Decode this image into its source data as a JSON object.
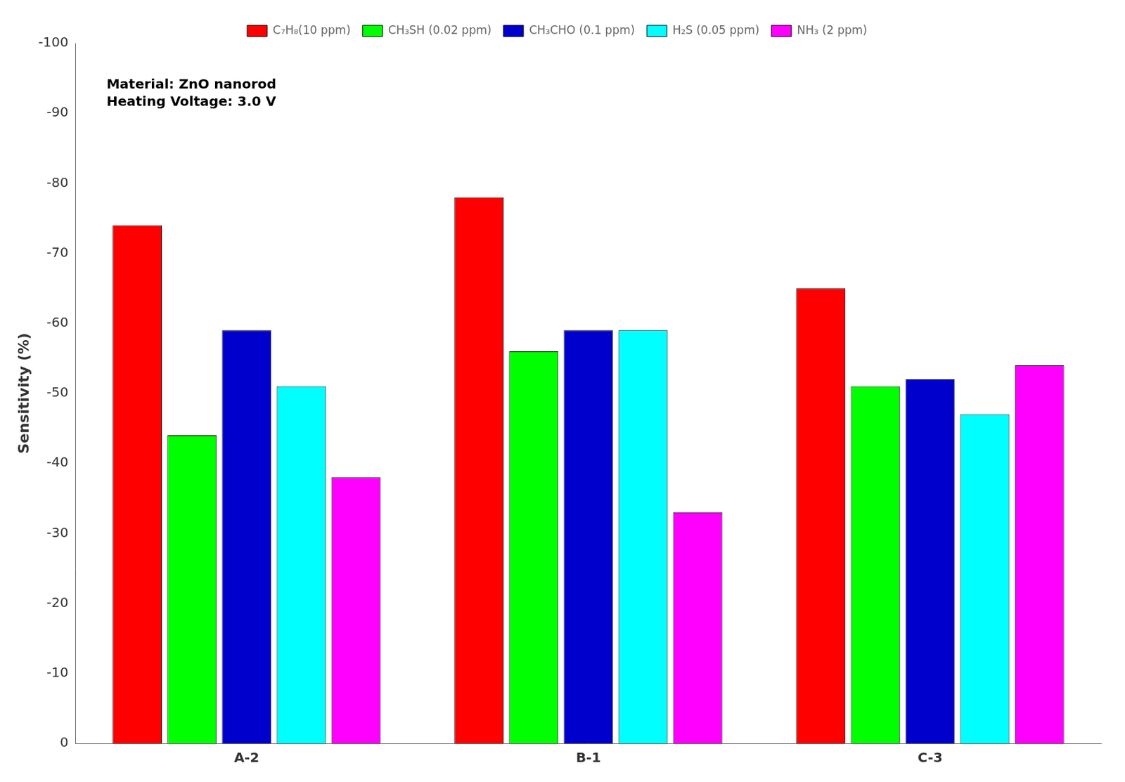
{
  "chart_data": {
    "type": "bar",
    "categories": [
      "A-2",
      "B-1",
      "C-3"
    ],
    "series": [
      {
        "name": "C₇H₈(10 ppm)",
        "color": "#FF0000",
        "values": [
          -74,
          -78,
          -65
        ]
      },
      {
        "name": "CH₃SH (0.02 ppm)",
        "color": "#00FF00",
        "values": [
          -44,
          -56,
          -51
        ]
      },
      {
        "name": "CH₃CHO (0.1 ppm)",
        "color": "#0000CC",
        "values": [
          -59,
          -59,
          -52
        ]
      },
      {
        "name": "H₂S (0.05 ppm)",
        "color": "#00FFFF",
        "values": [
          -51,
          -59,
          -47
        ]
      },
      {
        "name": "NH₃ (2 ppm)",
        "color": "#FF00FF",
        "values": [
          -38,
          -33,
          -54
        ]
      }
    ],
    "ylabel": "Sensitivity (%)",
    "ylim": [
      0,
      -100
    ],
    "yticks": [
      0,
      -10,
      -20,
      -30,
      -40,
      -50,
      -60,
      -70,
      -80,
      -90,
      -100
    ],
    "annotations": [
      "Material: ZnO nanorod",
      "Heating Voltage: 3.0 V"
    ],
    "legend": "top",
    "grid": false
  }
}
